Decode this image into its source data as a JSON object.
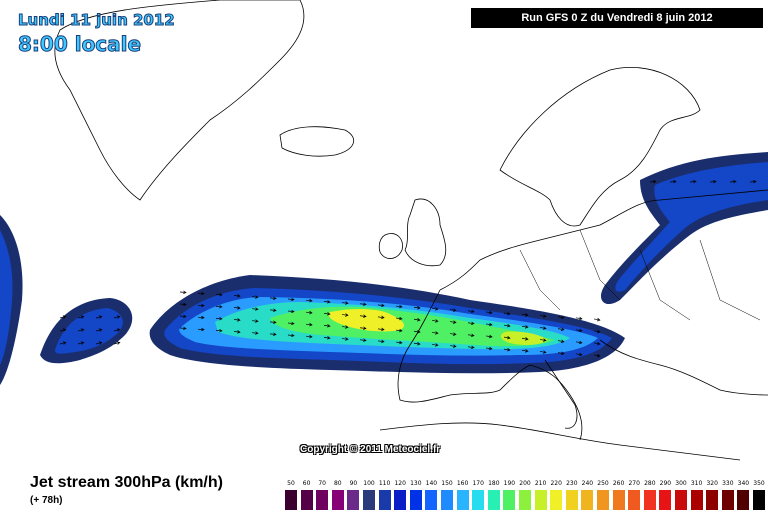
{
  "header": {
    "date": "Lundi 11 juin 2012",
    "time": "8:00 locale",
    "run": "Run GFS 0 Z du Vendredi 8 juin 2012"
  },
  "copyright": "Copyright © 2011 Meteociel.fr",
  "footer": {
    "parameter": "Jet stream 300hPa (km/h)",
    "lead_time": "(+ 78h)"
  },
  "legend": {
    "values": [
      "50",
      "60",
      "70",
      "80",
      "90",
      "100",
      "110",
      "120",
      "130",
      "140",
      "150",
      "160",
      "170",
      "180",
      "190",
      "200",
      "210",
      "220",
      "230",
      "240",
      "250",
      "260",
      "270",
      "280",
      "290",
      "300",
      "310",
      "320",
      "330",
      "340",
      "350"
    ],
    "colors": [
      "#3a0030",
      "#540048",
      "#6e0060",
      "#880078",
      "#6a2a8a",
      "#2a3a7a",
      "#1a3aaa",
      "#0a1ec8",
      "#0032e6",
      "#1464ff",
      "#1e8cff",
      "#28b4ff",
      "#28dcf0",
      "#28f0b4",
      "#50f064",
      "#8cf03c",
      "#c8f028",
      "#f0f028",
      "#f0d21e",
      "#f0b41e",
      "#f0961e",
      "#f0781e",
      "#f05a1e",
      "#f0321e",
      "#e61414",
      "#c80a0a",
      "#aa0000",
      "#8c0000",
      "#6e0000",
      "#500000",
      "#000000"
    ]
  },
  "colors": {
    "land_border": "#000000",
    "jet_outer": "#1a2e6e",
    "jet_mid": "#1446c8",
    "jet_inner": "#2a9bff",
    "jet_core": "#28dcc8",
    "jet_max": "#f0f028"
  }
}
